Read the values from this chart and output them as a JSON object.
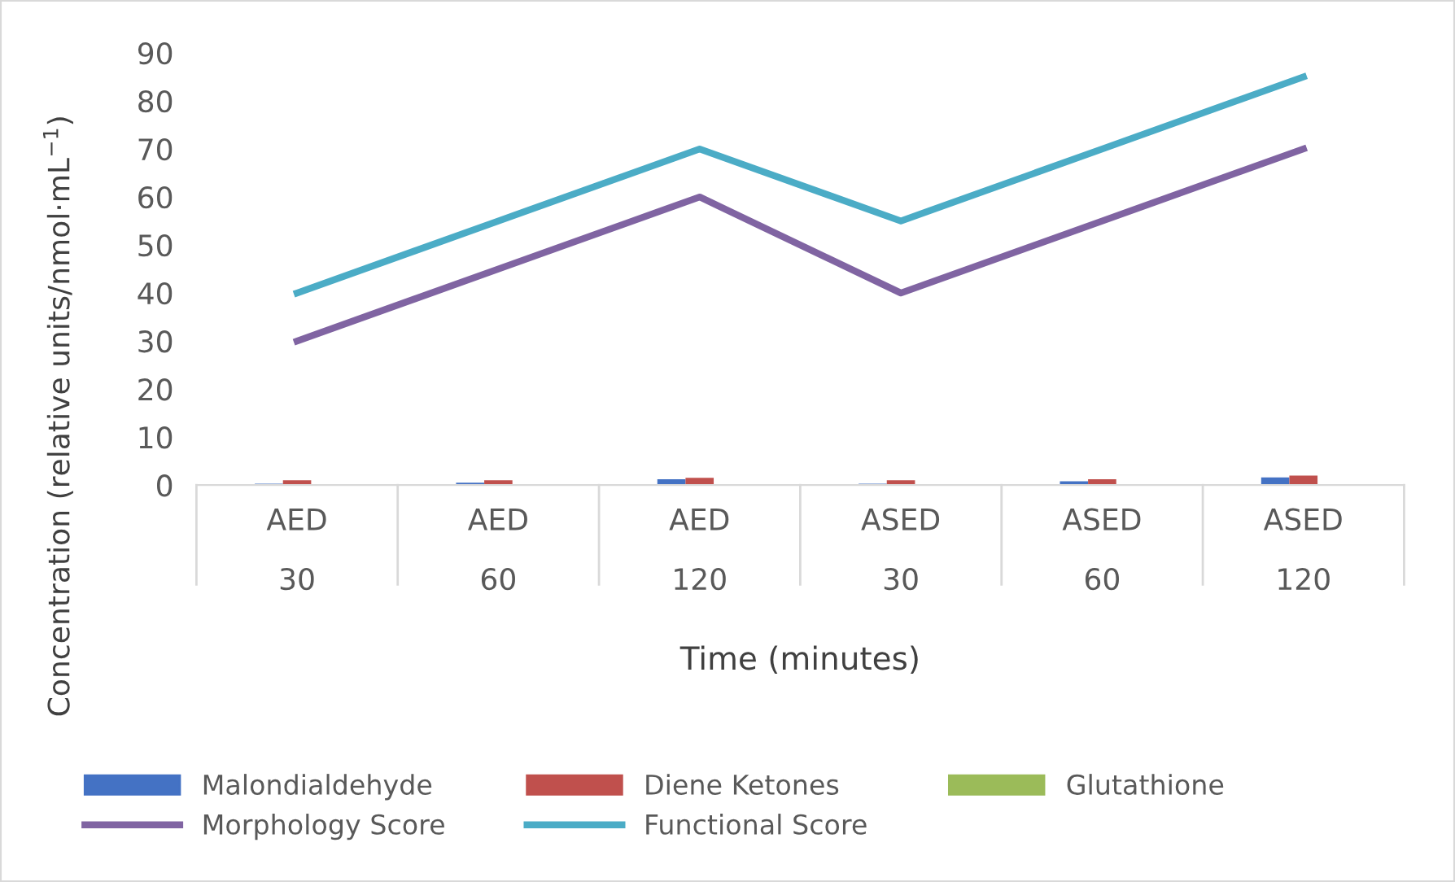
{
  "chart_data": {
    "type": "bar",
    "xlabel": "Time (minutes)",
    "ylabel": "Concentration (relative units/nmol·mL$^{−1}$)",
    "categories": [
      "AED\n30",
      "AED\n60",
      "AED\n120",
      "ASED\n30",
      "ASED\n60",
      "ASED\n120"
    ],
    "ylim": [
      0,
      90
    ],
    "yticks": [
      0,
      10,
      20,
      30,
      40,
      50,
      60,
      70,
      80,
      90
    ],
    "grid": false,
    "legend": "bottom",
    "series": [
      {
        "name": "Malondialdehyde",
        "color": "#4472c4",
        "values": [
          0.3,
          0.5,
          1.2,
          0.3,
          0.8,
          1.6
        ]
      },
      {
        "name": "Diene Ketones",
        "color": "#c0504d",
        "values": [
          1.0,
          1.0,
          1.5,
          1.0,
          1.2,
          2.0
        ]
      },
      {
        "name": "Glutathione",
        "color": "#9bbb59",
        "values": [
          null,
          null,
          null,
          null,
          null,
          null
        ]
      },
      {
        "name": "Morphology Score",
        "type": "line",
        "color": "#8064a2",
        "values": [
          30,
          45,
          60,
          40,
          55,
          70
        ]
      },
      {
        "name": "Functional Score",
        "type": "line",
        "color": "#4bacc6",
        "values": [
          40,
          55,
          70,
          55,
          70,
          85
        ]
      }
    ]
  }
}
